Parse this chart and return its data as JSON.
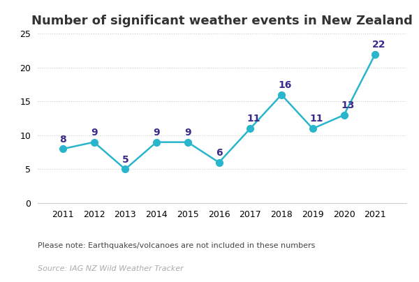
{
  "title": "Number of significant weather events in New Zealand",
  "years": [
    2011,
    2012,
    2013,
    2014,
    2015,
    2016,
    2017,
    2018,
    2019,
    2020,
    2021
  ],
  "values": [
    8,
    9,
    5,
    9,
    9,
    6,
    11,
    16,
    11,
    13,
    22
  ],
  "line_color": "#29b5cc",
  "marker_color": "#29b5cc",
  "label_color": "#3b2a8c",
  "ylim": [
    0,
    25
  ],
  "yticks": [
    0,
    5,
    10,
    15,
    20,
    25
  ],
  "background_color": "#ffffff",
  "grid_color": "#cccccc",
  "title_fontsize": 13,
  "label_fontsize": 10,
  "note_text": "Please note: Earthquakes/volcanoes are not included in these numbers",
  "source_text": "Source: IAG NZ Wild Weather Tracker",
  "note_fontsize": 8,
  "source_fontsize": 8,
  "tick_fontsize": 9
}
